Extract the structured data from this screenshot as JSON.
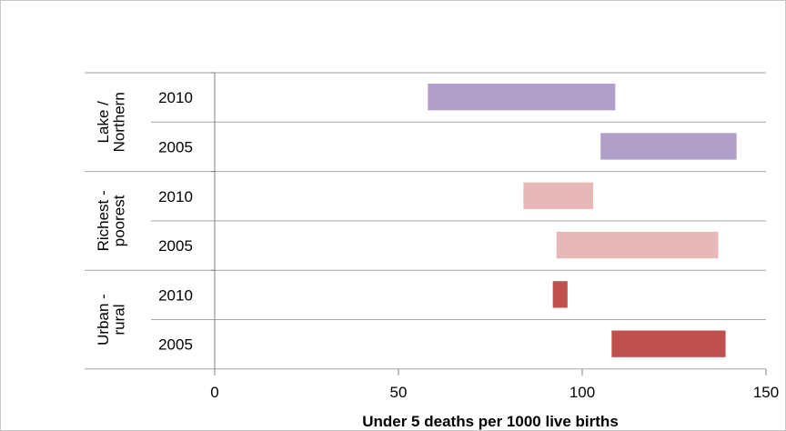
{
  "chart_data": {
    "type": "bar",
    "xlabel": "Under 5 deaths per 1000 live births",
    "xlim": [
      0,
      150
    ],
    "xticks": [
      0,
      50,
      100,
      150
    ],
    "groups": [
      {
        "label": "Lake / Northern",
        "color": "#b09fc8",
        "rows": [
          {
            "year": "2010",
            "start": 58,
            "end": 109
          },
          {
            "year": "2005",
            "start": 105,
            "end": 142
          }
        ]
      },
      {
        "label": "Richest - poorest",
        "color": "#e6b8b7",
        "rows": [
          {
            "year": "2010",
            "start": 84,
            "end": 103
          },
          {
            "year": "2005",
            "start": 93,
            "end": 137
          }
        ]
      },
      {
        "label": "Urban - rural",
        "color": "#c0504d",
        "rows": [
          {
            "year": "2010",
            "start": 92,
            "end": 96
          },
          {
            "year": "2005",
            "start": 108,
            "end": 139
          }
        ]
      }
    ]
  }
}
